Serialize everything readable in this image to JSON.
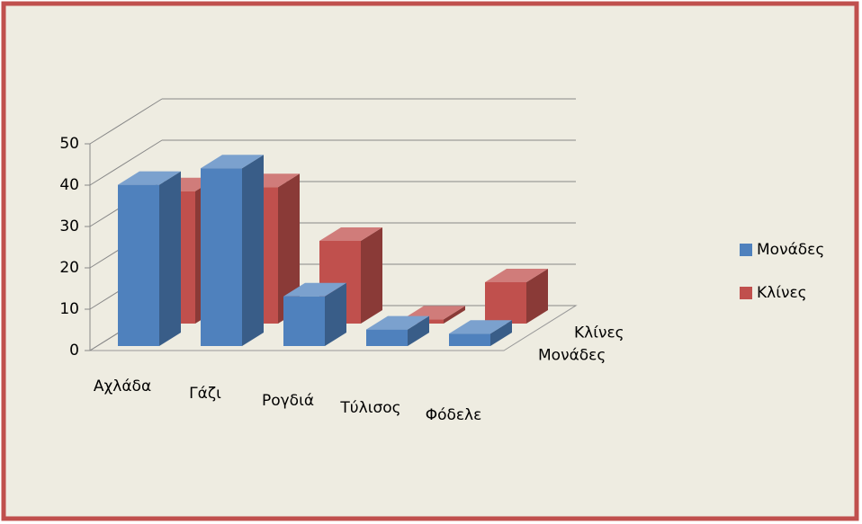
{
  "chart_data": {
    "type": "bar3d",
    "categories": [
      "Αχλάδα",
      "Γάζι",
      "Ρογδιά",
      "Τύλισος",
      "Φόδελε"
    ],
    "series": [
      {
        "name": "Μονάδες",
        "color": "#4f81bd",
        "values": [
          39,
          43,
          12,
          4,
          3
        ]
      },
      {
        "name": "Κλίνες",
        "color": "#c0504d",
        "values": [
          32,
          33,
          20,
          1,
          10
        ]
      }
    ],
    "ylim": [
      0,
      50
    ],
    "yticks": [
      0,
      10,
      20,
      30,
      40,
      50
    ],
    "grid": true,
    "legend": "right"
  }
}
